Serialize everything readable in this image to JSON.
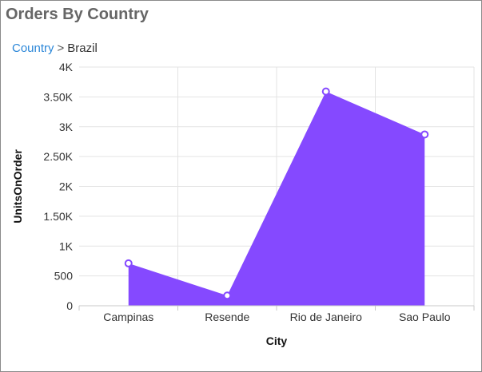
{
  "header": {
    "title": "Orders By Country"
  },
  "breadcrumb": {
    "root": "Country",
    "separator": ">",
    "current": "Brazil"
  },
  "colors": {
    "fill": "#8549FF",
    "marker_stroke": "#8549FF",
    "grid": "#e3e3e3"
  },
  "chart_data": {
    "type": "area",
    "title": "",
    "xlabel": "City",
    "ylabel": "UnitsOnOrder",
    "categories": [
      "Campinas",
      "Resende",
      "Rio de Janeiro",
      "Sao Paulo"
    ],
    "series": [
      {
        "values": [
          710,
          170,
          3590,
          2870
        ]
      }
    ],
    "ylim": [
      0,
      4000
    ],
    "y_ticks": [
      {
        "value": 0,
        "label": "0"
      },
      {
        "value": 500,
        "label": "500"
      },
      {
        "value": 1000,
        "label": "1K"
      },
      {
        "value": 1500,
        "label": "1.50K"
      },
      {
        "value": 2000,
        "label": "2K"
      },
      {
        "value": 2500,
        "label": "2.50K"
      },
      {
        "value": 3000,
        "label": "3K"
      },
      {
        "value": 3500,
        "label": "3.50K"
      },
      {
        "value": 4000,
        "label": "4K"
      }
    ],
    "grid": true,
    "legend": "none"
  }
}
